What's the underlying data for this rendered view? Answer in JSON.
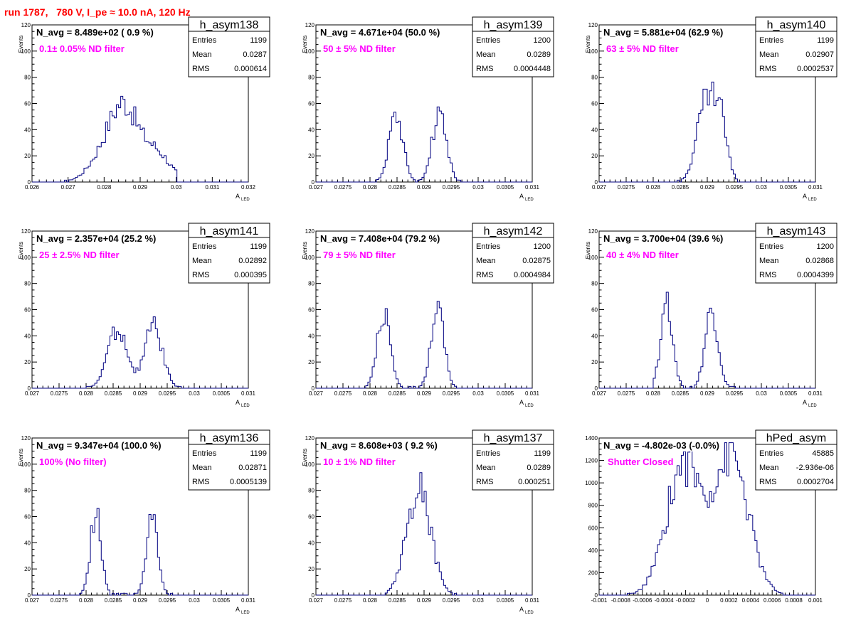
{
  "header": {
    "run_title": "run 1787,   780 V, I_pe ≈ 10.0 nA, 120 Hz"
  },
  "colors": {
    "histogram": "#000080",
    "filter_label": "#ff00ff",
    "run_title": "#ff0000"
  },
  "stats_labels": {
    "entries": "Entries",
    "mean": "Mean",
    "rms": "RMS"
  },
  "chart_data": [
    {
      "type": "histogram",
      "name": "h_asym138",
      "navg": "N_avg = 8.489e+02 ( 0.9 %)",
      "filter": "0.1± 0.05% ND filter",
      "stats": {
        "entries": "1199",
        "mean": "0.0287",
        "rms": "0.000614"
      },
      "xlabel": "A",
      "xlabel_sub": "LED",
      "ylabel": "Events",
      "xlim": [
        0.026,
        0.032
      ],
      "ylim": [
        0,
        120
      ],
      "xticks": [
        "0.026",
        "0.027",
        "0.028",
        "0.029",
        "0.03",
        "0.031",
        "0.032"
      ],
      "yticks": [
        "0",
        "20",
        "40",
        "60",
        "80",
        "100",
        "120"
      ],
      "peaks": [
        [
          0.02815,
          28,
          0.00045
        ],
        [
          0.0286,
          40,
          0.00035
        ],
        [
          0.0294,
          24,
          0.0004
        ]
      ],
      "hist_range": [
        0.0269,
        0.03
      ],
      "grid": false
    },
    {
      "type": "histogram",
      "name": "h_asym139",
      "navg": "N_avg = 4.671e+04 (50.0 %)",
      "filter": "50 ± 5% ND filter",
      "stats": {
        "entries": "1200",
        "mean": "0.0289",
        "rms": "0.0004448"
      },
      "xlabel": "A",
      "xlabel_sub": "LED",
      "ylabel": "Events",
      "xlim": [
        0.027,
        0.031
      ],
      "ylim": [
        0,
        120
      ],
      "xticks": [
        "0.027",
        "0.0275",
        "0.028",
        "0.0285",
        "0.029",
        "0.0295",
        "0.03",
        "0.0305",
        "0.031"
      ],
      "yticks": [
        "0",
        "20",
        "40",
        "60",
        "80",
        "100",
        "120"
      ],
      "peaks": [
        [
          0.02848,
          52,
          0.00013
        ],
        [
          0.02928,
          52,
          0.00013
        ]
      ],
      "hist_range": [
        0.0281,
        0.0297
      ],
      "grid": false
    },
    {
      "type": "histogram",
      "name": "h_asym140",
      "navg": "N_avg = 5.881e+04 (62.9 %)",
      "filter": "63 ± 5% ND filter",
      "stats": {
        "entries": "1199",
        "mean": "0.02907",
        "rms": "0.0002537"
      },
      "xlabel": "A",
      "xlabel_sub": "LED",
      "ylabel": "Events",
      "xlim": [
        0.027,
        0.031
      ],
      "ylim": [
        0,
        120
      ],
      "xticks": [
        "0.027",
        "0.0275",
        "0.028",
        "0.0285",
        "0.029",
        "0.0295",
        "0.03",
        "0.0305",
        "0.031"
      ],
      "yticks": [
        "0",
        "20",
        "40",
        "60",
        "80",
        "100",
        "120"
      ],
      "peaks": [
        [
          0.02898,
          62,
          0.00017
        ],
        [
          0.02925,
          40,
          0.00012
        ]
      ],
      "hist_range": [
        0.0284,
        0.0296
      ],
      "grid": false
    },
    {
      "type": "histogram",
      "name": "h_asym141",
      "navg": "N_avg = 2.357e+04 (25.2 %)",
      "filter": "25 ± 2.5% ND filter",
      "stats": {
        "entries": "1199",
        "mean": "0.02892",
        "rms": "0.000395"
      },
      "xlabel": "A",
      "xlabel_sub": "LED",
      "ylabel": "Events",
      "xlim": [
        0.027,
        0.031
      ],
      "ylim": [
        0,
        120
      ],
      "xticks": [
        "0.027",
        "0.0275",
        "0.028",
        "0.0285",
        "0.029",
        "0.0295",
        "0.03",
        "0.0305",
        "0.031"
      ],
      "yticks": [
        "0",
        "20",
        "40",
        "60",
        "80",
        "100",
        "120"
      ],
      "peaks": [
        [
          0.02858,
          46,
          0.00018
        ],
        [
          0.02925,
          48,
          0.00016
        ]
      ],
      "hist_range": [
        0.028,
        0.0298
      ],
      "grid": false
    },
    {
      "type": "histogram",
      "name": "h_asym142",
      "navg": "N_avg = 7.408e+04 (79.2 %)",
      "filter": "79 ± 5% ND filter",
      "stats": {
        "entries": "1200",
        "mean": "0.02875",
        "rms": "0.0004984"
      },
      "xlabel": "A",
      "xlabel_sub": "LED",
      "ylabel": "Events",
      "xlim": [
        0.027,
        0.031
      ],
      "ylim": [
        0,
        120
      ],
      "xticks": [
        "0.027",
        "0.0275",
        "0.028",
        "0.0285",
        "0.029",
        "0.0295",
        "0.03",
        "0.0305",
        "0.031"
      ],
      "yticks": [
        "0",
        "20",
        "40",
        "60",
        "80",
        "100",
        "120"
      ],
      "peaks": [
        [
          0.02825,
          58,
          0.00012
        ],
        [
          0.02925,
          60,
          0.00012
        ]
      ],
      "hist_range": [
        0.0279,
        0.0296
      ],
      "grid": false
    },
    {
      "type": "histogram",
      "name": "h_asym143",
      "navg": "N_avg = 3.700e+04 (39.6 %)",
      "filter": "40 ± 4% ND filter",
      "stats": {
        "entries": "1200",
        "mean": "0.02868",
        "rms": "0.0004399"
      },
      "xlabel": "A",
      "xlabel_sub": "LED",
      "ylabel": "Events",
      "xlim": [
        0.027,
        0.031
      ],
      "ylim": [
        0,
        120
      ],
      "xticks": [
        "0.027",
        "0.0275",
        "0.028",
        "0.0285",
        "0.029",
        "0.0295",
        "0.03",
        "0.0305",
        "0.031"
      ],
      "yticks": [
        "0",
        "20",
        "40",
        "60",
        "80",
        "100",
        "120"
      ],
      "peaks": [
        [
          0.02825,
          66,
          0.00011
        ],
        [
          0.02908,
          58,
          0.00012
        ]
      ],
      "hist_range": [
        0.028,
        0.0295
      ],
      "grid": false
    },
    {
      "type": "histogram",
      "name": "h_asym136",
      "navg": "N_avg = 9.347e+04 (100.0 %)",
      "filter": "100% (No filter)",
      "stats": {
        "entries": "1199",
        "mean": "0.02871",
        "rms": "0.0005139"
      },
      "xlabel": "A",
      "xlabel_sub": "LED",
      "ylabel": "Events",
      "xlim": [
        0.027,
        0.031
      ],
      "ylim": [
        0,
        120
      ],
      "xticks": [
        "0.027",
        "0.0275",
        "0.028",
        "0.0285",
        "0.029",
        "0.0295",
        "0.03",
        "0.0305",
        "0.031"
      ],
      "yticks": [
        "0",
        "20",
        "40",
        "60",
        "80",
        "100",
        "120"
      ],
      "peaks": [
        [
          0.02818,
          62,
          0.0001
        ],
        [
          0.02922,
          64,
          0.0001
        ]
      ],
      "hist_range": [
        0.0278,
        0.0296
      ],
      "grid": false
    },
    {
      "type": "histogram",
      "name": "h_asym137",
      "navg": "N_avg = 8.608e+03 ( 9.2 %)",
      "filter": "10 ± 1% ND filter",
      "stats": {
        "entries": "1199",
        "mean": "0.0289",
        "rms": "0.000251"
      },
      "xlabel": "A",
      "xlabel_sub": "LED",
      "ylabel": "Events",
      "xlim": [
        0.027,
        0.031
      ],
      "ylim": [
        0,
        120
      ],
      "xticks": [
        "0.027",
        "0.0275",
        "0.028",
        "0.0285",
        "0.029",
        "0.0295",
        "0.03",
        "0.0305",
        "0.031"
      ],
      "yticks": [
        "0",
        "20",
        "40",
        "60",
        "80",
        "100",
        "120"
      ],
      "peaks": [
        [
          0.0289,
          82,
          0.00022
        ]
      ],
      "hist_range": [
        0.0283,
        0.0296
      ],
      "grid": false
    },
    {
      "type": "histogram",
      "name": "hPed_asym",
      "navg": "N_avg = -4.802e-03 (-0.0%)",
      "filter": "Shutter Closed",
      "stats": {
        "entries": "45885",
        "mean": "-2.936e-06",
        "rms": "0.0002704"
      },
      "xlabel": "",
      "xlabel_sub": "",
      "ylabel": "",
      "xlim": [
        -0.001,
        0.001
      ],
      "ylim": [
        0,
        1400
      ],
      "xticks": [
        "-0.001",
        "-0.0008",
        "-0.0006",
        "-0.0004",
        "-0.0002",
        "0",
        "0.0002",
        "0.0004",
        "0.0006",
        "0.0008",
        "0.001"
      ],
      "yticks": [
        "0",
        "200",
        "400",
        "600",
        "800",
        "1000",
        "1200",
        "1400"
      ],
      "peaks": [
        [
          -0.00022,
          1150,
          0.00016
        ],
        [
          0.00022,
          1230,
          0.00016
        ]
      ],
      "hist_range": [
        -0.00075,
        0.0007
      ],
      "grid": false
    }
  ]
}
